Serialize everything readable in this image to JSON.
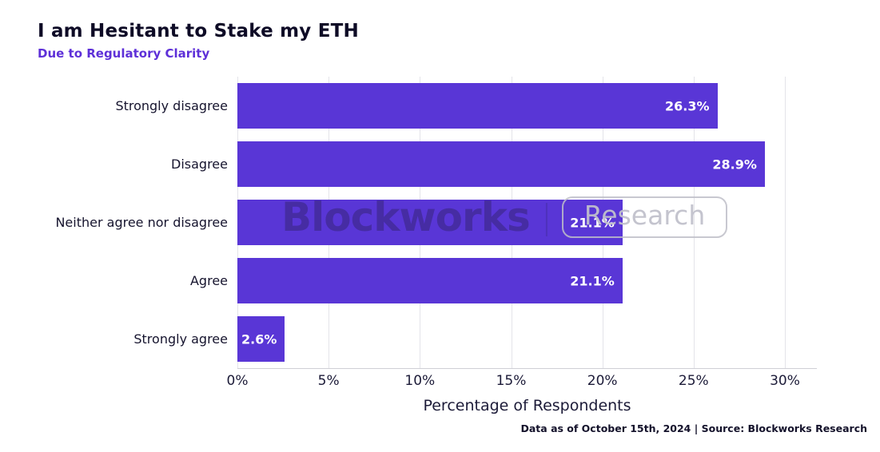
{
  "header": {
    "title": "I am Hesitant to Stake my ETH",
    "subtitle": "Due to Regulatory Clarity"
  },
  "chart_data": {
    "type": "bar",
    "orientation": "horizontal",
    "title": "I am Hesitant to Stake my ETH",
    "subtitle": "Due to Regulatory Clarity",
    "categories": [
      "Strongly disagree",
      "Disagree",
      "Neither agree nor disagree",
      "Agree",
      "Strongly agree"
    ],
    "values": [
      26.3,
      28.9,
      21.1,
      21.1,
      2.6
    ],
    "value_labels": [
      "26.3%",
      "28.9%",
      "21.1%",
      "21.1%",
      "2.6%"
    ],
    "xlabel": "Percentage of Respondents",
    "ylabel": "",
    "x_tick_labels": [
      "0%",
      "5%",
      "10%",
      "15%",
      "20%",
      "25%",
      "30%"
    ],
    "x_tick_values": [
      0,
      5,
      10,
      15,
      20,
      25,
      30
    ],
    "xlim": [
      0,
      31.75
    ],
    "grid": true,
    "legend_position": "none",
    "bar_color": "#5936d6",
    "value_label_color": "#ffffff"
  },
  "watermark": {
    "brand": "Blockworks",
    "separator": "|",
    "badge": "Research"
  },
  "footer": {
    "note": "Data as of October 15th, 2024 | Source: Blockworks Research"
  },
  "colors": {
    "bar": "#5936d6",
    "title_text": "#0e0b26",
    "subtitle_text": "#5e30d8",
    "tick_text": "#1c1b38",
    "gridline": "#e4e4e9",
    "background": "#ffffff"
  }
}
